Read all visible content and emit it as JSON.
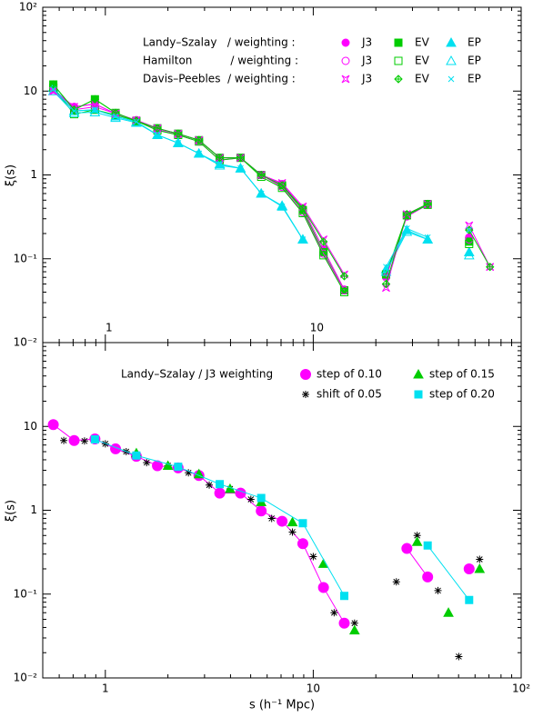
{
  "chart_data": [
    {
      "type": "line",
      "log_x": true,
      "log_y": true,
      "ylabel": "ξ(s)",
      "xlim": [
        0.5,
        100
      ],
      "ylim": [
        0.01,
        100
      ],
      "xticks": [
        1,
        10
      ],
      "yticks": [
        {
          "value": 0.01,
          "label": "10⁻²"
        },
        {
          "value": 0.1,
          "label": "10⁻¹"
        },
        1,
        10,
        {
          "value": 100,
          "label": "10²"
        }
      ],
      "legend_rows": [
        "Landy–Szalay   / weighting :",
        "Hamilton           / weighting :",
        "Davis–Peebles  / weighting :"
      ],
      "x": [
        0.562,
        0.708,
        0.891,
        1.12,
        1.41,
        1.78,
        2.24,
        2.82,
        3.55,
        4.47,
        5.62,
        7.08,
        8.91,
        11.2,
        14.1,
        17.8,
        22.4,
        28.2,
        35.5,
        44.7,
        56.2,
        70.8
      ],
      "series": [
        {
          "name": "J3",
          "color": "#ff00ff",
          "marker": "circle-filled",
          "values": [
            10.5,
            6.5,
            7.0,
            5.4,
            4.5,
            3.6,
            3.1,
            2.6,
            1.6,
            1.6,
            1.0,
            0.78,
            0.4,
            0.13,
            0.043,
            null,
            0.062,
            0.32,
            0.45,
            null,
            0.18,
            null
          ]
        },
        {
          "name": "EV",
          "color": "#00cc00",
          "marker": "square-filled",
          "values": [
            12,
            6.0,
            8.0,
            5.5,
            4.4,
            3.6,
            3.1,
            2.6,
            1.6,
            1.6,
            1.0,
            0.75,
            0.38,
            0.12,
            0.042,
            null,
            0.065,
            0.33,
            0.45,
            null,
            0.16,
            null
          ]
        },
        {
          "name": "EP",
          "color": "#00e0f0",
          "marker": "triangle-filled",
          "values": [
            11,
            5.8,
            6.0,
            5.0,
            4.3,
            3.0,
            2.4,
            1.8,
            1.35,
            1.2,
            0.6,
            0.42,
            0.17,
            null,
            null,
            null,
            0.075,
            0.22,
            0.17,
            null,
            0.12,
            null
          ]
        },
        {
          "name": "J3",
          "color": "#ff00ff",
          "marker": "circle-open",
          "values": [
            10,
            6.0,
            6.5,
            5.4,
            4.5,
            3.5,
            3.0,
            2.5,
            1.5,
            1.6,
            1.0,
            0.72,
            0.36,
            0.115,
            0.042,
            null,
            0.06,
            0.32,
            0.44,
            null,
            0.17,
            null
          ]
        },
        {
          "name": "EV",
          "color": "#00cc00",
          "marker": "square-open",
          "values": [
            11,
            5.3,
            6.0,
            5.2,
            4.4,
            3.4,
            3.0,
            2.5,
            1.5,
            1.6,
            0.95,
            0.7,
            0.35,
            0.11,
            0.04,
            null,
            0.065,
            0.33,
            0.44,
            null,
            0.15,
            null
          ]
        },
        {
          "name": "EP",
          "color": "#00e0f0",
          "marker": "triangle-open",
          "values": [
            10,
            5.5,
            5.6,
            4.8,
            4.2,
            3.0,
            2.4,
            1.8,
            1.3,
            1.2,
            0.6,
            0.43,
            0.17,
            null,
            null,
            null,
            0.07,
            0.21,
            0.17,
            null,
            0.11,
            null
          ]
        },
        {
          "name": "J3",
          "color": "#ff00ff",
          "marker": "star",
          "values": [
            10,
            6.5,
            7.0,
            5.4,
            4.5,
            3.6,
            3.1,
            2.6,
            1.6,
            1.6,
            1.0,
            0.8,
            0.42,
            0.17,
            0.065,
            null,
            0.045,
            0.34,
            0.45,
            null,
            0.25,
            0.08
          ]
        },
        {
          "name": "EV",
          "color": "#00cc00",
          "marker": "plus-diamond",
          "values": [
            12,
            6.0,
            8.0,
            5.5,
            4.4,
            3.6,
            3.1,
            2.6,
            1.6,
            1.6,
            1.0,
            0.75,
            0.4,
            0.16,
            0.062,
            null,
            0.05,
            0.34,
            0.45,
            null,
            0.22,
            0.08
          ]
        },
        {
          "name": "EP",
          "color": "#00e0f0",
          "marker": "cross",
          "values": [
            10.5,
            5.8,
            6.0,
            5.0,
            4.3,
            3.0,
            2.4,
            1.8,
            1.35,
            1.2,
            0.6,
            0.42,
            0.17,
            null,
            null,
            null,
            0.08,
            0.23,
            0.18,
            null,
            0.22,
            null
          ]
        }
      ]
    },
    {
      "type": "line",
      "log_x": true,
      "log_y": true,
      "ylabel": "ξ(s)",
      "xlabel": "s (h⁻¹ Mpc)",
      "legend_title": "Landy–Szalay / J3 weighting",
      "xlim": [
        0.5,
        100
      ],
      "ylim": [
        0.01,
        100
      ],
      "xticks": [
        1,
        10,
        {
          "value": 100,
          "label": "10²"
        }
      ],
      "yticks": [
        {
          "value": 0.01,
          "label": "10⁻²"
        },
        {
          "value": 0.1,
          "label": "10⁻¹"
        },
        1,
        10
      ],
      "series": [
        {
          "name": "step of 0.10",
          "color": "#ff00ff",
          "marker": "big-circle",
          "line": true,
          "x": [
            0.562,
            0.708,
            0.891,
            1.12,
            1.41,
            1.78,
            2.24,
            2.82,
            3.55,
            4.47,
            5.62,
            7.08,
            8.91,
            11.2,
            14.1,
            17.8,
            22.4,
            28.2,
            35.5,
            44.7,
            56.2
          ],
          "values": [
            10.5,
            6.8,
            7.1,
            5.4,
            4.4,
            3.4,
            3.2,
            2.6,
            1.6,
            1.6,
            0.98,
            0.74,
            0.4,
            0.12,
            0.045,
            null,
            null,
            0.35,
            0.16,
            null,
            0.2
          ]
        },
        {
          "name": "shift of 0.05",
          "color": "#000000",
          "marker": "asterisk",
          "line": false,
          "x": [
            0.631,
            0.794,
            1.0,
            1.26,
            1.58,
            2.0,
            2.51,
            3.16,
            3.98,
            5.01,
            6.31,
            7.94,
            10,
            12.6,
            15.8,
            20,
            25.1,
            31.6,
            39.8,
            50.1,
            63.1
          ],
          "values": [
            6.8,
            6.7,
            6.2,
            5.0,
            3.7,
            3.4,
            2.8,
            2.0,
            1.8,
            1.35,
            0.8,
            0.55,
            0.28,
            0.06,
            0.045,
            null,
            0.14,
            0.5,
            0.11,
            0.018,
            0.26
          ]
        },
        {
          "name": "step of 0.15",
          "color": "#00cc00",
          "marker": "triangle-filled",
          "line": false,
          "x": [
            1.41,
            2.0,
            2.82,
            3.98,
            5.62,
            7.94,
            11.2,
            15.8,
            22.4,
            31.6,
            44.7,
            63.1
          ],
          "values": [
            4.8,
            3.4,
            2.7,
            1.8,
            1.25,
            0.72,
            0.23,
            0.037,
            null,
            0.42,
            0.06,
            0.2
          ]
        },
        {
          "name": "step of 0.20",
          "color": "#00e0f0",
          "marker": "square-filled",
          "line": true,
          "x": [
            0.891,
            1.41,
            2.24,
            3.55,
            5.62,
            8.91,
            14.1,
            22.4,
            35.5,
            56.2
          ],
          "values": [
            7.0,
            4.5,
            3.3,
            2.05,
            1.4,
            0.7,
            0.095,
            null,
            0.38,
            0.085
          ]
        }
      ]
    }
  ]
}
